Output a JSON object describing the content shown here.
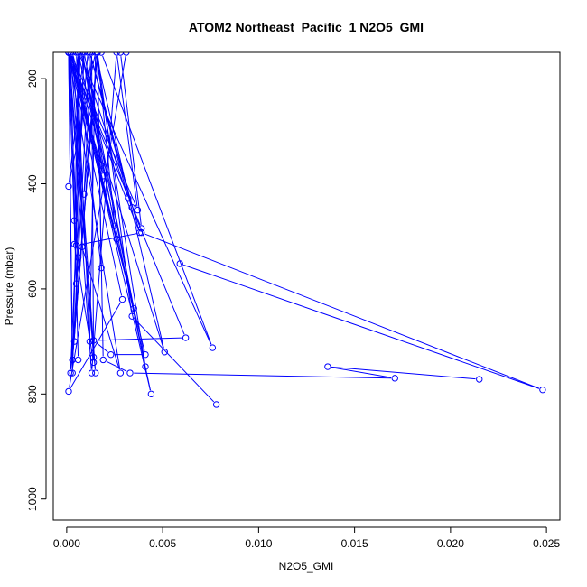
{
  "chart_data": {
    "type": "line",
    "title": "ATOM2 Northeast_Pacific_1 N2O5_GMI",
    "xlabel": "N2O5_GMI",
    "ylabel": "Pressure (mbar)",
    "xlim": [
      -0.0007,
      0.0257
    ],
    "ylim": [
      1040,
      150
    ],
    "y_inverted": true,
    "x_ticks": [
      0.0,
      0.005,
      0.01,
      0.015,
      0.02,
      0.025
    ],
    "x_tick_labels": [
      "0.000",
      "0.005",
      "0.010",
      "0.015",
      "0.020",
      "0.025"
    ],
    "y_ticks": [
      200,
      400,
      600,
      800,
      1000
    ],
    "y_tick_labels": [
      "200",
      "400",
      "600",
      "800",
      "1000"
    ],
    "series_color": "#0000ff",
    "marker": "open-circle",
    "series": [
      {
        "x": [
          0.0001,
          0.0028,
          0.0008,
          0.0006,
          0.0004,
          0.0014,
          0.0013,
          0.0009,
          0.0016,
          0.0018,
          0.0005,
          0.0012,
          0.0015,
          0.0001,
          0.0009,
          0.0004
        ],
        "y": [
          150,
          760,
          520,
          150,
          515,
          740,
          150,
          420,
          150,
          560,
          150,
          700,
          150,
          405,
          150,
          700
        ]
      },
      {
        "x": [
          0.0031,
          0.0001,
          0.0029,
          0.0001,
          0.0018,
          0.0011,
          0.0004,
          0.0006,
          0.0001,
          0.0003,
          0.0016,
          0.0025,
          0.0008,
          0.0019,
          0.0001,
          0.0005
        ],
        "y": [
          150,
          795,
          620,
          150,
          365,
          150,
          470,
          540,
          150,
          735,
          150,
          480,
          150,
          385,
          150,
          590
        ]
      },
      {
        "x": [
          0.0001,
          0.0026,
          0.0003,
          0.0015,
          0.0001,
          0.0003,
          0.0007,
          0.0032,
          0.0012,
          0.0003,
          0.0016,
          0.0002,
          0.0009,
          0.0035,
          0.0002,
          0.0006
        ],
        "y": [
          150,
          505,
          150,
          760,
          150,
          760,
          150,
          428,
          150,
          735,
          150,
          760,
          150,
          637,
          150,
          735
        ]
      },
      {
        "x": [
          0.0028,
          0.0039,
          0.0001,
          0.0038,
          0.0012,
          0.0034,
          0.0062,
          0.0014,
          0.0023,
          0.0041,
          0.0001,
          0.0013,
          0.0026,
          0.0037,
          0.0002,
          0.0014
        ],
        "y": [
          150,
          485,
          150,
          493,
          150,
          445,
          693,
          698,
          725,
          725,
          150,
          760,
          150,
          450,
          150,
          730
        ]
      },
      {
        "x": [
          0.0018,
          0.0076,
          0.0006,
          0.0005,
          0.0039,
          0.0248,
          0.0059
        ],
        "y": [
          150,
          712,
          150,
          517,
          493,
          792,
          552
        ]
      },
      {
        "x": [
          0.0008,
          0.0041,
          0.0015,
          0.0051,
          0.0002,
          0.0044,
          0.0006
        ],
        "y": [
          150,
          748,
          150,
          720,
          150,
          800,
          150
        ]
      },
      {
        "x": [
          0.0078,
          0.0034,
          0.0016,
          0.0019,
          0.0033,
          0.0171,
          0.0136,
          0.0215
        ],
        "y": [
          820,
          652,
          150,
          735,
          760,
          770,
          748,
          772
        ]
      }
    ]
  }
}
